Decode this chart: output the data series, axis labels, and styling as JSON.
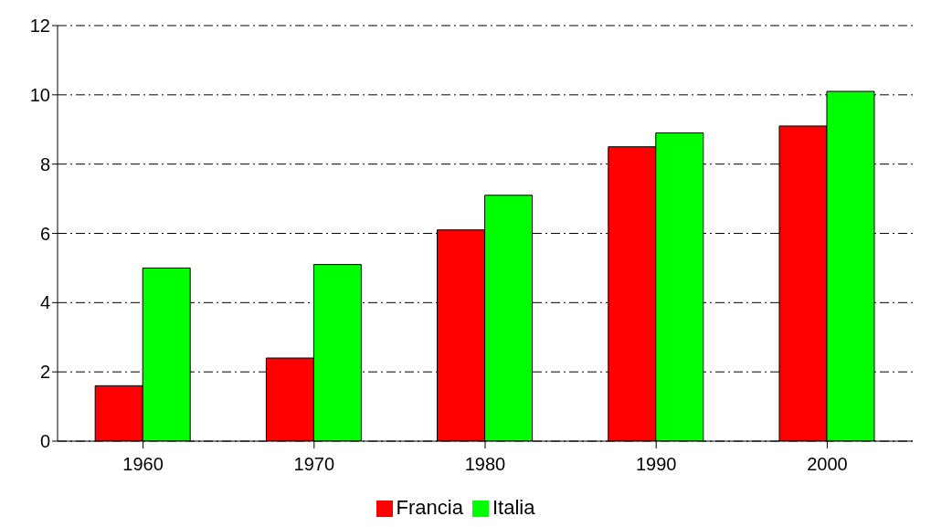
{
  "chart_data": {
    "type": "bar",
    "categories": [
      "1960",
      "1970",
      "1980",
      "1990",
      "2000"
    ],
    "series": [
      {
        "name": "Francia",
        "color": "#ff0000",
        "values": [
          1.6,
          2.4,
          6.1,
          8.5,
          9.1
        ]
      },
      {
        "name": "Italia",
        "color": "#00ff00",
        "values": [
          5.0,
          5.1,
          7.1,
          8.9,
          10.1
        ]
      }
    ],
    "ylim": [
      0,
      12
    ],
    "yticks": [
      0,
      2,
      4,
      6,
      8,
      10,
      12
    ],
    "grid": "y",
    "legend": "bottom"
  }
}
